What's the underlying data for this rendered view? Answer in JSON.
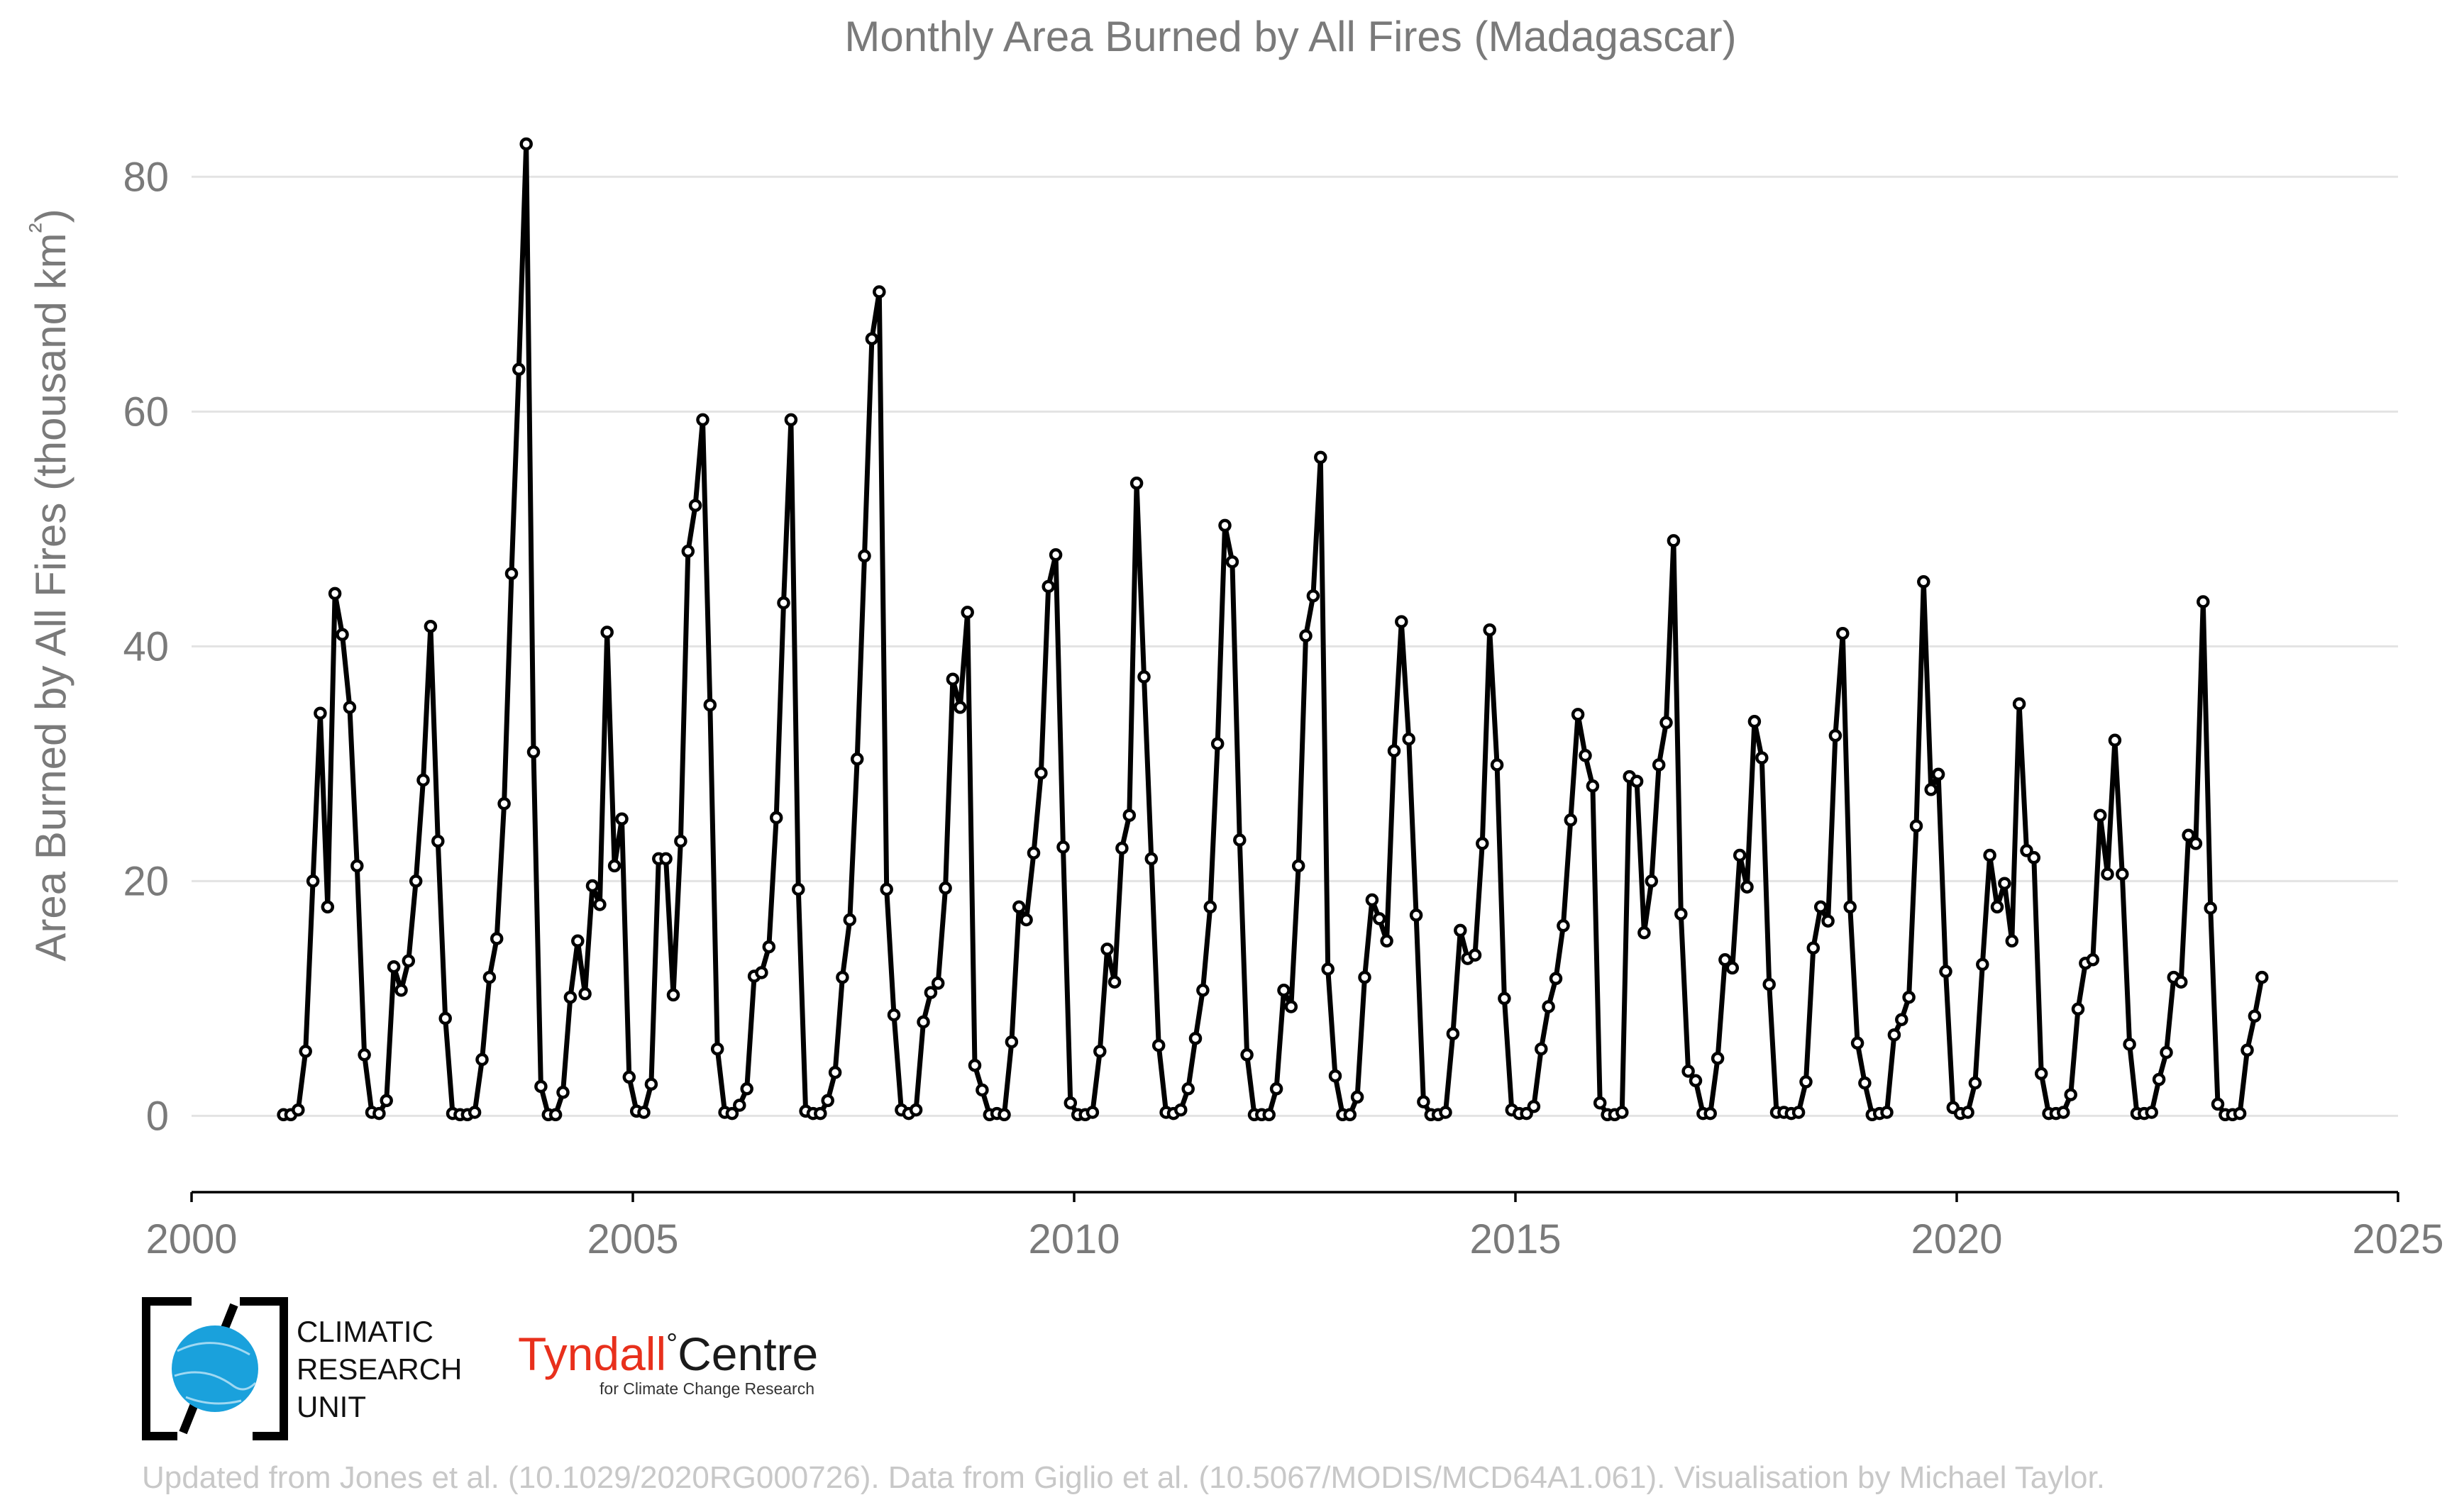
{
  "chart_data": {
    "type": "line",
    "title": "Monthly Area Burned by All Fires (Madagascar)",
    "ylabel": "Area Burned by All Fires (thousand km²)",
    "xlabel": "",
    "xlim": [
      2000,
      2025
    ],
    "ylim": [
      -6.5,
      86
    ],
    "xticks": [
      2000,
      2005,
      2010,
      2015,
      2020,
      2025
    ],
    "yticks": [
      0,
      20,
      40,
      60,
      80
    ],
    "grid": "horizontal",
    "legend": "none",
    "start_year": 2001,
    "start_month": 1,
    "series_color": "#000000",
    "values": [
      0.1,
      0.1,
      0.5,
      5.5,
      20,
      34.3,
      17.8,
      44.5,
      41,
      34.8,
      21.3,
      5.2,
      0.3,
      0.2,
      1.3,
      12.7,
      10.7,
      13.2,
      20,
      28.6,
      41.7,
      23.4,
      8.3,
      0.2,
      0.1,
      0.1,
      0.3,
      4.8,
      11.8,
      15.1,
      26.6,
      46.2,
      63.6,
      82.8,
      31,
      2.5,
      0.1,
      0.1,
      2,
      10.1,
      14.9,
      10.4,
      19.6,
      18,
      41.2,
      21.3,
      25.3,
      3.3,
      0.4,
      0.3,
      2.7,
      21.9,
      21.9,
      10.3,
      23.4,
      48.1,
      52,
      59.3,
      35,
      5.7,
      0.3,
      0.2,
      0.9,
      2.3,
      11.9,
      12.2,
      14.4,
      25.4,
      43.7,
      59.3,
      19.3,
      0.4,
      0.2,
      0.2,
      1.3,
      3.7,
      11.8,
      16.7,
      30.4,
      47.7,
      66.2,
      70.2,
      19.3,
      8.6,
      0.5,
      0.2,
      0.5,
      8,
      10.5,
      11.3,
      19.4,
      37.2,
      34.8,
      42.9,
      4.3,
      2.2,
      0.1,
      0.2,
      0.1,
      6.3,
      17.8,
      16.7,
      22.4,
      29.2,
      45.1,
      47.8,
      22.9,
      1.1,
      0.1,
      0.1,
      0.3,
      5.5,
      14.2,
      11.4,
      22.8,
      25.6,
      53.9,
      37.4,
      21.9,
      6,
      0.3,
      0.2,
      0.5,
      2.3,
      6.6,
      10.7,
      17.8,
      31.7,
      50.3,
      47.2,
      23.5,
      5.2,
      0.1,
      0.1,
      0.1,
      2.3,
      10.7,
      9.3,
      21.3,
      40.9,
      44.3,
      56.1,
      12.5,
      3.4,
      0.1,
      0.1,
      1.6,
      11.8,
      18.4,
      16.8,
      14.9,
      31.1,
      42.1,
      32.1,
      17.1,
      1.2,
      0.1,
      0.1,
      0.3,
      7,
      15.8,
      13.4,
      13.7,
      23.2,
      41.4,
      29.9,
      10,
      0.5,
      0.2,
      0.2,
      0.8,
      5.7,
      9.3,
      11.7,
      16.2,
      25.2,
      34.2,
      30.7,
      28.1,
      1.1,
      0.1,
      0.1,
      0.3,
      28.9,
      28.5,
      15.6,
      20,
      29.9,
      33.5,
      49,
      17.2,
      3.8,
      3,
      0.2,
      0.2,
      4.9,
      13.3,
      12.6,
      22.2,
      19.5,
      33.6,
      30.5,
      11.2,
      0.3,
      0.3,
      0.2,
      0.3,
      2.9,
      14.3,
      17.8,
      16.6,
      32.4,
      41.1,
      17.8,
      6.2,
      2.8,
      0.1,
      0.2,
      0.3,
      6.9,
      8.2,
      10.1,
      24.7,
      45.5,
      27.8,
      29.1,
      12.3,
      0.7,
      0.2,
      0.3,
      2.8,
      12.9,
      22.2,
      17.8,
      19.8,
      14.9,
      35.1,
      22.6,
      22,
      3.6,
      0.2,
      0.2,
      0.3,
      1.8,
      9.1,
      13,
      13.3,
      25.6,
      20.6,
      32,
      20.6,
      6.1,
      0.2,
      0.2,
      0.3,
      3.1,
      5.4,
      11.8,
      11.4,
      23.9,
      23.2,
      43.8,
      17.7,
      1,
      0.1,
      0.1,
      0.2,
      5.6,
      8.5,
      11.8
    ]
  },
  "logos": {
    "cru_line1": "CLIMATIC",
    "cru_line2": "RESEARCH",
    "cru_line3": "UNIT",
    "tyndall_red": "Tyndall",
    "tyndall_degree": "°",
    "tyndall_black": "Centre",
    "tyndall_sub": "for Climate Change Research"
  },
  "credit": "Updated from Jones et al. (10.1029/2020RG000726). Data from Giglio et al. (10.5067/MODIS/MCD64A1.061). Visualisation by Michael Taylor."
}
